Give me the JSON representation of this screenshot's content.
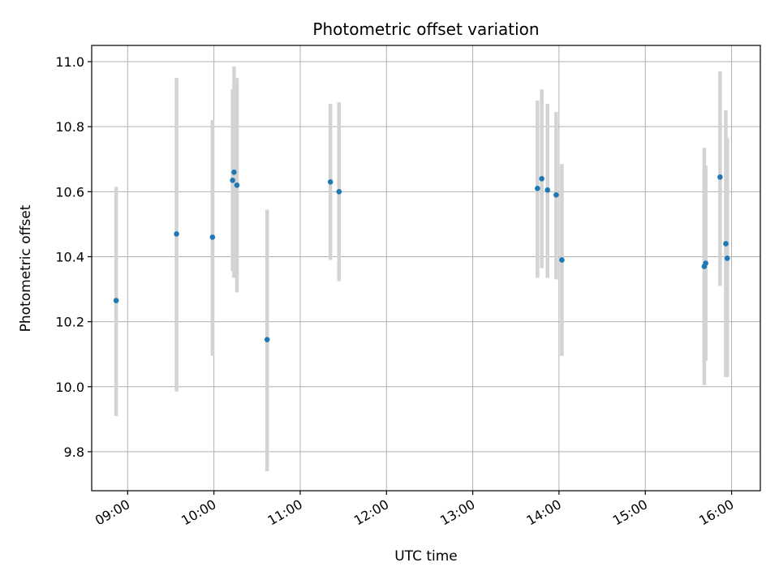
{
  "chart_data": {
    "type": "scatter",
    "title": "Photometric offset variation",
    "xlabel": "UTC time",
    "ylabel": "Photometric offset",
    "x_axis_type": "time",
    "xlim": [
      "08:35",
      "16:20"
    ],
    "ylim": [
      9.68,
      11.05
    ],
    "x_ticks": [
      "09:00",
      "10:00",
      "11:00",
      "12:00",
      "13:00",
      "14:00",
      "15:00",
      "16:00"
    ],
    "y_ticks": [
      "9.8",
      "10.0",
      "10.2",
      "10.4",
      "10.6",
      "10.8",
      "11.0"
    ],
    "grid": true,
    "legend": false,
    "colors": {
      "marker": "#1f77b4",
      "errorbar": "#d3d3d3"
    },
    "points": [
      {
        "time": "08:52",
        "y": 10.265,
        "ylow": 9.91,
        "yhigh": 10.615
      },
      {
        "time": "09:34",
        "y": 10.47,
        "ylow": 9.985,
        "yhigh": 10.95
      },
      {
        "time": "09:59",
        "y": 10.46,
        "ylow": 10.095,
        "yhigh": 10.82
      },
      {
        "time": "10:13",
        "y": 10.635,
        "ylow": 10.355,
        "yhigh": 10.915
      },
      {
        "time": "10:14",
        "y": 10.66,
        "ylow": 10.335,
        "yhigh": 10.985
      },
      {
        "time": "10:16",
        "y": 10.62,
        "ylow": 10.29,
        "yhigh": 10.95
      },
      {
        "time": "10:37",
        "y": 10.145,
        "ylow": 9.74,
        "yhigh": 10.545
      },
      {
        "time": "11:21",
        "y": 10.63,
        "ylow": 10.39,
        "yhigh": 10.87
      },
      {
        "time": "11:27",
        "y": 10.6,
        "ylow": 10.325,
        "yhigh": 10.875
      },
      {
        "time": "13:45",
        "y": 10.61,
        "ylow": 10.335,
        "yhigh": 10.88
      },
      {
        "time": "13:48",
        "y": 10.64,
        "ylow": 10.365,
        "yhigh": 10.915
      },
      {
        "time": "13:52",
        "y": 10.605,
        "ylow": 10.335,
        "yhigh": 10.87
      },
      {
        "time": "13:58",
        "y": 10.59,
        "ylow": 10.33,
        "yhigh": 10.845
      },
      {
        "time": "14:02",
        "y": 10.39,
        "ylow": 10.095,
        "yhigh": 10.685
      },
      {
        "time": "15:41",
        "y": 10.37,
        "ylow": 10.005,
        "yhigh": 10.735
      },
      {
        "time": "15:42",
        "y": 10.38,
        "ylow": 10.08,
        "yhigh": 10.68
      },
      {
        "time": "15:52",
        "y": 10.645,
        "ylow": 10.31,
        "yhigh": 10.97
      },
      {
        "time": "15:56",
        "y": 10.44,
        "ylow": 10.03,
        "yhigh": 10.85
      },
      {
        "time": "15:57",
        "y": 10.395,
        "ylow": 10.03,
        "yhigh": 10.765
      }
    ]
  }
}
